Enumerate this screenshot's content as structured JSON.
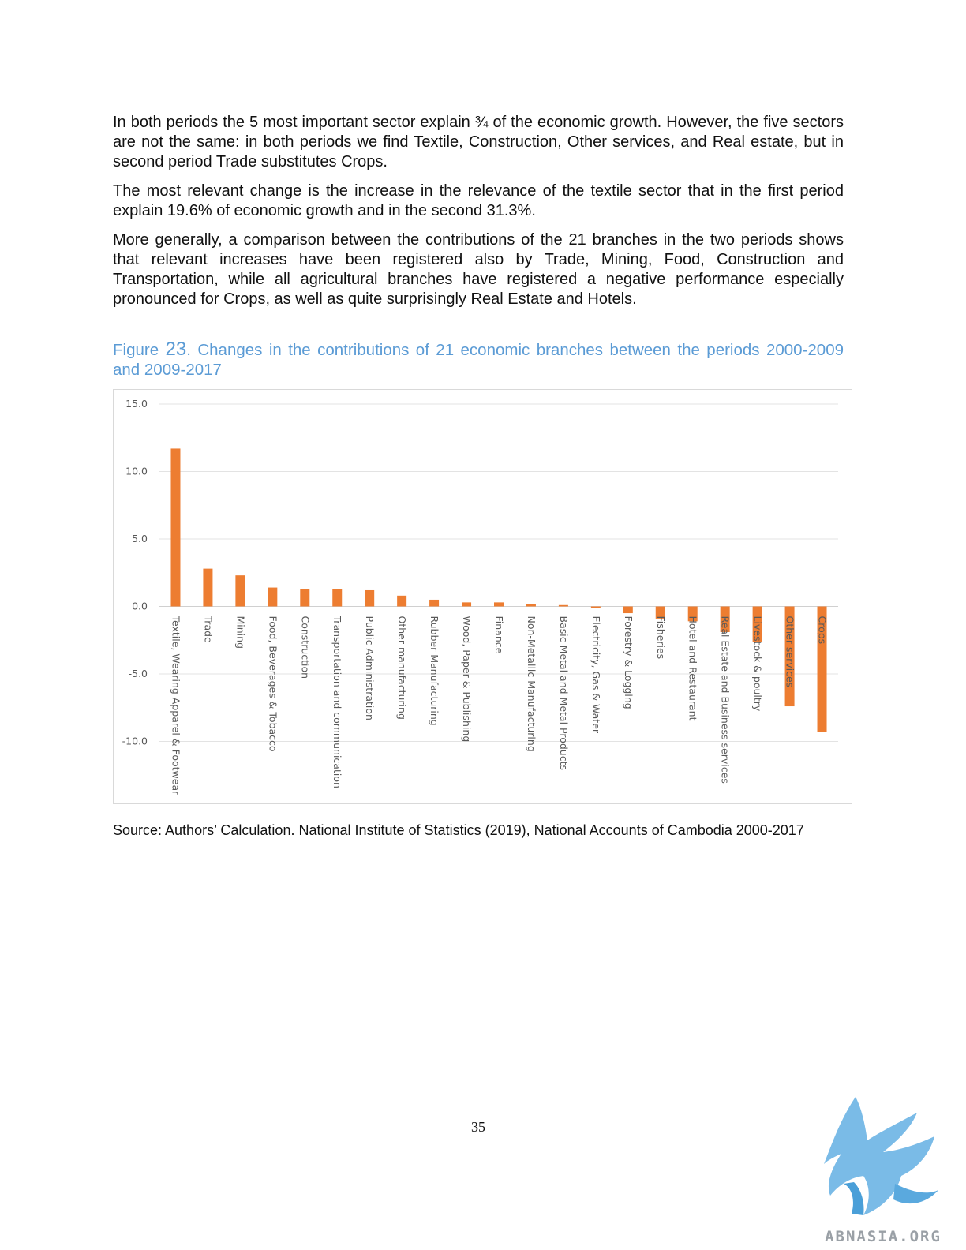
{
  "body": {
    "paragraphs": [
      "In both periods the 5 most important sector explain ¾ of the economic growth. However, the five sectors are not the same: in both periods we find Textile, Construction, Other services, and Real estate, but in second period Trade substitutes Crops.",
      "The most relevant change is the increase in the relevance of the textile sector that in the first period explain 19.6% of economic growth and in the second 31.3%.",
      "More generally, a comparison between the contributions of the 21 branches in the two periods shows that relevant increases have been registered also by Trade, Mining, Food, Construction and Transportation, while all agricultural branches have registered a negative performance especially pronounced for Crops, as well as quite surprisingly Real Estate and Hotels."
    ]
  },
  "figure": {
    "prefix": "Figure ",
    "number": "23",
    "title": ". Changes in the contributions of 21 economic branches between the periods 2000-2009 and 2009-2017"
  },
  "chart_data": {
    "type": "bar",
    "title": "",
    "xlabel": "",
    "ylabel": "",
    "ylim": [
      -15,
      15
    ],
    "y_ticks": [
      "15.0",
      "10.0",
      "5.0",
      "0.0",
      "-5.0",
      "-10.0"
    ],
    "grid": true,
    "legend": "none",
    "bar_color": "#ed7d31",
    "categories": [
      "Textile, Wearing Apparel & Footwear",
      "Trade",
      "Mining",
      "Food, Beverages & Tobacco",
      "Construction",
      "Transportation and communication",
      "Public Administration",
      "Other manufacturing",
      "Rubber Manufacturing",
      "Wood, Paper & Publishing",
      "Finance",
      "Non-Metallic Manufacturing",
      "Basic Metal and Metal Products",
      "Electricity, Gas & Water",
      "Forestry & Logging",
      "Fisheries",
      "Hotel and Restaurant",
      "Real Estate and Business services",
      "Livestock & poultry",
      "Other services",
      "Crops"
    ],
    "values": [
      11.7,
      2.8,
      2.3,
      1.4,
      1.3,
      1.3,
      1.2,
      0.8,
      0.5,
      0.3,
      0.3,
      0.15,
      0.1,
      -0.1,
      -0.5,
      -0.9,
      -1.1,
      -1.9,
      -2.6,
      -7.4,
      -9.3
    ]
  },
  "source": {
    "text": "Source: Authors’ Calculation.  National Institute of Statistics (2019), National Accounts of Cambodia 2000-2017"
  },
  "page_number": "35",
  "watermark": {
    "text": "ABNASIA.ORG",
    "icon": "griffin-logo-icon",
    "color": "#6cb4e4"
  }
}
